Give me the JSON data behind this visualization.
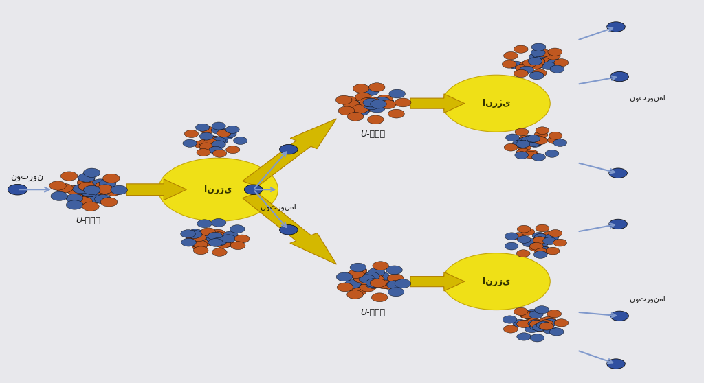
{
  "bg_color": "#e8e8ec",
  "nucleus_colors": [
    "#4060a0",
    "#c05820"
  ],
  "neutron_color": "#3050a0",
  "arrow_color": "#d4b800",
  "arrow_edge": "#b08000",
  "energy_color": "#f0e000",
  "energy_edge": "#c0a000",
  "label_color": "#1a1a1a",
  "energy_label": "انرژی",
  "neutron_label": "نوترون",
  "neutrons_label": "نوترون‌ها",
  "u235_label": "U-۲۳۵",
  "font_size": 9,
  "title_font_size": 11
}
